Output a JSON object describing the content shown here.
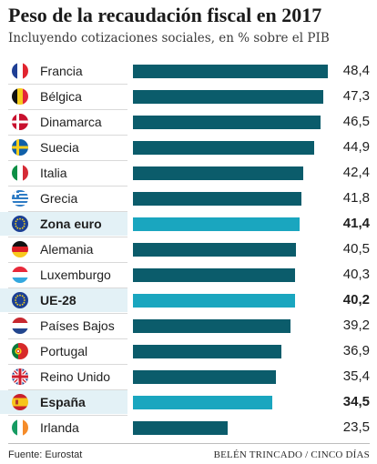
{
  "header": {
    "title": "Peso de la recaudación fiscal en 2017",
    "subtitle": "Incluyendo cotizaciones sociales, en % sobre el PIB"
  },
  "colors": {
    "bar": "#0b5c6b",
    "bar_highlight": "#1aa6bf",
    "row_highlight": "#e3f1f6"
  },
  "chart_data": {
    "type": "bar",
    "orientation": "horizontal",
    "title": "Peso de la recaudación fiscal en 2017",
    "subtitle": "Incluyendo cotizaciones sociales, en % sobre el PIB",
    "xlim": [
      0,
      50
    ],
    "grid": false,
    "categories": [
      "Francia",
      "Bélgica",
      "Dinamarca",
      "Suecia",
      "Italia",
      "Grecia",
      "Zona euro",
      "Alemania",
      "Luxemburgo",
      "UE-28",
      "Países Bajos",
      "Portugal",
      "Reino Unido",
      "España",
      "Irlanda"
    ],
    "values": [
      48.4,
      47.3,
      46.5,
      44.9,
      42.4,
      41.8,
      41.4,
      40.5,
      40.3,
      40.2,
      39.2,
      36.9,
      35.4,
      34.5,
      23.5
    ],
    "value_labels": [
      "48,4",
      "47,3",
      "46,5",
      "44,9",
      "42,4",
      "41,8",
      "41,4",
      "40,5",
      "40,3",
      "40,2",
      "39,2",
      "36,9",
      "35,4",
      "34,5",
      "23,5"
    ],
    "flags": [
      "france-flag-icon",
      "belgium-flag-icon",
      "denmark-flag-icon",
      "sweden-flag-icon",
      "italy-flag-icon",
      "greece-flag-icon",
      "eu-flag-icon",
      "germany-flag-icon",
      "luxembourg-flag-icon",
      "eu-flag-icon",
      "netherlands-flag-icon",
      "portugal-flag-icon",
      "uk-flag-icon",
      "spain-flag-icon",
      "ireland-flag-icon"
    ],
    "highlighted": [
      "Zona euro",
      "UE-28",
      "España"
    ],
    "bold_labels": [
      "Zona euro",
      "UE-28",
      "España"
    ]
  },
  "footer": {
    "source": "Fuente: Eurostat",
    "credit": "BELÉN TRINCADO / CINCO DÍAS"
  }
}
